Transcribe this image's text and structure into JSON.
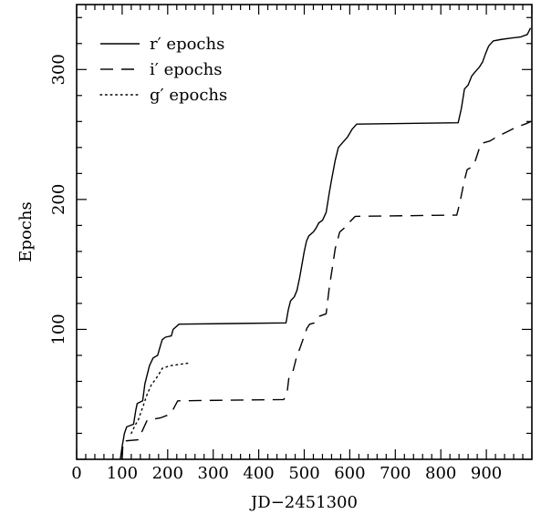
{
  "chart_data": {
    "type": "line",
    "title": "",
    "xlabel": "JD−2451300",
    "ylabel": "Epochs",
    "xlim": [
      0,
      1000
    ],
    "ylim": [
      0,
      350
    ],
    "x_ticks": [
      0,
      100,
      200,
      300,
      400,
      500,
      600,
      700,
      800,
      900
    ],
    "x_tick_labels": [
      "0",
      "100",
      "200",
      "300",
      "400",
      "500",
      "600",
      "700",
      "800",
      "900"
    ],
    "y_ticks": [
      100,
      200,
      300
    ],
    "y_tick_labels": [
      "100",
      "200",
      "300"
    ],
    "y_minor_step": 20,
    "x_minor_step": 20,
    "grid": false,
    "legend_position": "top-left",
    "series": [
      {
        "name": "r′ epochs",
        "style": "solid",
        "color": "#000000",
        "points": [
          [
            96,
            0
          ],
          [
            100,
            10
          ],
          [
            105,
            20
          ],
          [
            110,
            25
          ],
          [
            125,
            27
          ],
          [
            130,
            38
          ],
          [
            133,
            43
          ],
          [
            145,
            45
          ],
          [
            150,
            58
          ],
          [
            155,
            65
          ],
          [
            160,
            72
          ],
          [
            168,
            78
          ],
          [
            178,
            80
          ],
          [
            182,
            85
          ],
          [
            188,
            92
          ],
          [
            195,
            94
          ],
          [
            208,
            95
          ],
          [
            212,
            100
          ],
          [
            225,
            104
          ],
          [
            460,
            105
          ],
          [
            465,
            115
          ],
          [
            470,
            122
          ],
          [
            478,
            125
          ],
          [
            484,
            130
          ],
          [
            490,
            140
          ],
          [
            495,
            150
          ],
          [
            500,
            160
          ],
          [
            505,
            168
          ],
          [
            510,
            172
          ],
          [
            520,
            175
          ],
          [
            526,
            178
          ],
          [
            532,
            182
          ],
          [
            540,
            184
          ],
          [
            548,
            190
          ],
          [
            555,
            205
          ],
          [
            560,
            215
          ],
          [
            568,
            230
          ],
          [
            575,
            240
          ],
          [
            585,
            244
          ],
          [
            595,
            248
          ],
          [
            605,
            254
          ],
          [
            615,
            258
          ],
          [
            838,
            259
          ],
          [
            845,
            270
          ],
          [
            852,
            285
          ],
          [
            860,
            288
          ],
          [
            868,
            295
          ],
          [
            875,
            298
          ],
          [
            885,
            302
          ],
          [
            892,
            306
          ],
          [
            898,
            312
          ],
          [
            905,
            318
          ],
          [
            915,
            322
          ],
          [
            930,
            323
          ],
          [
            950,
            324
          ],
          [
            975,
            325
          ],
          [
            990,
            327
          ],
          [
            997,
            332
          ]
        ]
      },
      {
        "name": "i′ epochs",
        "style": "dashed",
        "color": "#000000",
        "points": [
          [
            100,
            0
          ],
          [
            102,
            14
          ],
          [
            135,
            15
          ],
          [
            155,
            30
          ],
          [
            185,
            32
          ],
          [
            200,
            34
          ],
          [
            210,
            37
          ],
          [
            222,
            45
          ],
          [
            455,
            46
          ],
          [
            462,
            50
          ],
          [
            466,
            62
          ],
          [
            474,
            66
          ],
          [
            484,
            80
          ],
          [
            490,
            85
          ],
          [
            500,
            95
          ],
          [
            506,
            101
          ],
          [
            512,
            104
          ],
          [
            522,
            105
          ],
          [
            532,
            110
          ],
          [
            548,
            112
          ],
          [
            555,
            132
          ],
          [
            562,
            148
          ],
          [
            568,
            162
          ],
          [
            578,
            175
          ],
          [
            588,
            178
          ],
          [
            598,
            182
          ],
          [
            612,
            187
          ],
          [
            835,
            188
          ],
          [
            842,
            198
          ],
          [
            852,
            215
          ],
          [
            858,
            223
          ],
          [
            868,
            225
          ],
          [
            876,
            230
          ],
          [
            888,
            243
          ],
          [
            908,
            245
          ],
          [
            922,
            248
          ],
          [
            945,
            252
          ],
          [
            968,
            256
          ],
          [
            985,
            258
          ],
          [
            998,
            260
          ]
        ]
      },
      {
        "name": "g′ epochs",
        "style": "dotted",
        "color": "#000000",
        "points": [
          [
            120,
            20
          ],
          [
            128,
            26
          ],
          [
            135,
            30
          ],
          [
            145,
            40
          ],
          [
            155,
            50
          ],
          [
            165,
            58
          ],
          [
            170,
            60
          ],
          [
            180,
            65
          ],
          [
            188,
            70
          ],
          [
            205,
            72
          ],
          [
            225,
            73
          ],
          [
            245,
            74
          ]
        ]
      }
    ]
  }
}
